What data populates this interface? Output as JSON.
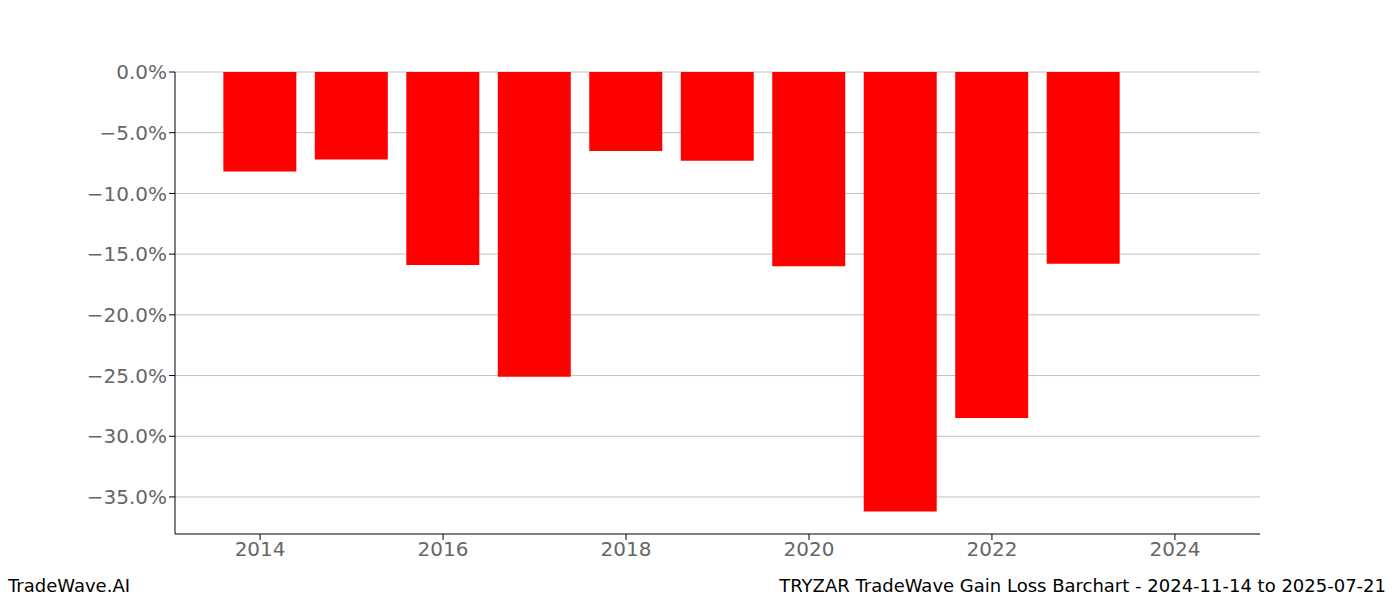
{
  "chart_data": {
    "type": "bar",
    "title": "TRYZAR TradeWave Gain Loss Barchart - 2024-11-14 to 2025-07-21",
    "annotations": [
      "TradeWave.AI"
    ],
    "x": [
      2014,
      2015,
      2016,
      2017,
      2018,
      2019,
      2020,
      2021,
      2022,
      2023
    ],
    "values": [
      -8.2,
      -7.2,
      -15.9,
      -25.1,
      -6.5,
      -7.3,
      -16.0,
      -36.2,
      -28.5,
      -15.8
    ],
    "color": "#ff0000",
    "xlim": [
      2013.07,
      2024.93
    ],
    "xticks": [
      2014,
      2016,
      2018,
      2020,
      2022,
      2024
    ],
    "ylim": [
      -38.05,
      0
    ],
    "yticks": [
      {
        "value": 0,
        "label": "0.0%"
      },
      {
        "value": -5,
        "label": "−5.0%"
      },
      {
        "value": -10,
        "label": "−10.0%"
      },
      {
        "value": -15,
        "label": "−15.0%"
      },
      {
        "value": -20,
        "label": "−20.0%"
      },
      {
        "value": -25,
        "label": "−25.0%"
      },
      {
        "value": -30,
        "label": "−30.0%"
      },
      {
        "value": -35,
        "label": "−35.0%"
      }
    ],
    "grid": true
  }
}
